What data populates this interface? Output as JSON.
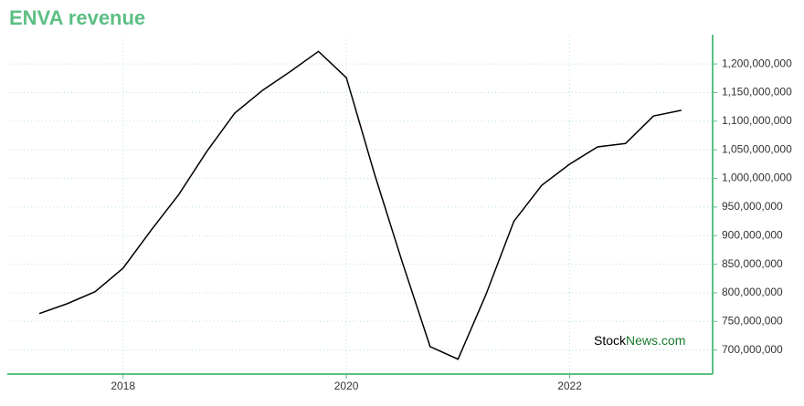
{
  "chart_data": {
    "type": "line",
    "title": "ENVA revenue",
    "x": [
      2017.25,
      2017.5,
      2017.75,
      2018.0,
      2018.25,
      2018.5,
      2018.75,
      2019.0,
      2019.25,
      2019.5,
      2019.75,
      2020.0,
      2020.25,
      2020.5,
      2020.75,
      2021.0,
      2021.25,
      2021.5,
      2021.75,
      2022.0,
      2022.25,
      2022.5,
      2022.75,
      2023.0
    ],
    "series": [
      {
        "name": "ENVA revenue",
        "color": "#000000",
        "values": [
          763700000,
          781000000,
          802000000,
          843000000,
          909000000,
          972000000,
          1047000000,
          1114000000,
          1154000000,
          1187000000,
          1222000000,
          1176000000,
          1009000000,
          854000000,
          706000000,
          684000000,
          797000000,
          925000000,
          988000000,
          1025000000,
          1055000000,
          1061000000,
          1109000000,
          1119000000
        ]
      }
    ],
    "xlim": [
      2016.98,
      2023.28
    ],
    "xticks": [
      2018,
      2020,
      2022
    ],
    "ylim": [
      658000000,
      1248000000
    ],
    "yticks": [
      {
        "value": 700000000,
        "label": "700,000,000"
      },
      {
        "value": 750000000,
        "label": "750,000,000"
      },
      {
        "value": 800000000,
        "label": "800,000,000"
      },
      {
        "value": 850000000,
        "label": "850,000,000"
      },
      {
        "value": 900000000,
        "label": "900,000,000"
      },
      {
        "value": 950000000,
        "label": "950,000,000"
      },
      {
        "value": 1000000000,
        "label": "1,000,000,000"
      },
      {
        "value": 1050000000,
        "label": "1,050,000,000"
      },
      {
        "value": 1100000000,
        "label": "1,100,000,000"
      },
      {
        "value": 1150000000,
        "label": "1,150,000,000"
      },
      {
        "value": 1200000000,
        "label": "1,200,000,000"
      }
    ],
    "grid": true,
    "axis_color": "#5cbf84",
    "watermark": [
      "Stock",
      "News.com"
    ]
  }
}
